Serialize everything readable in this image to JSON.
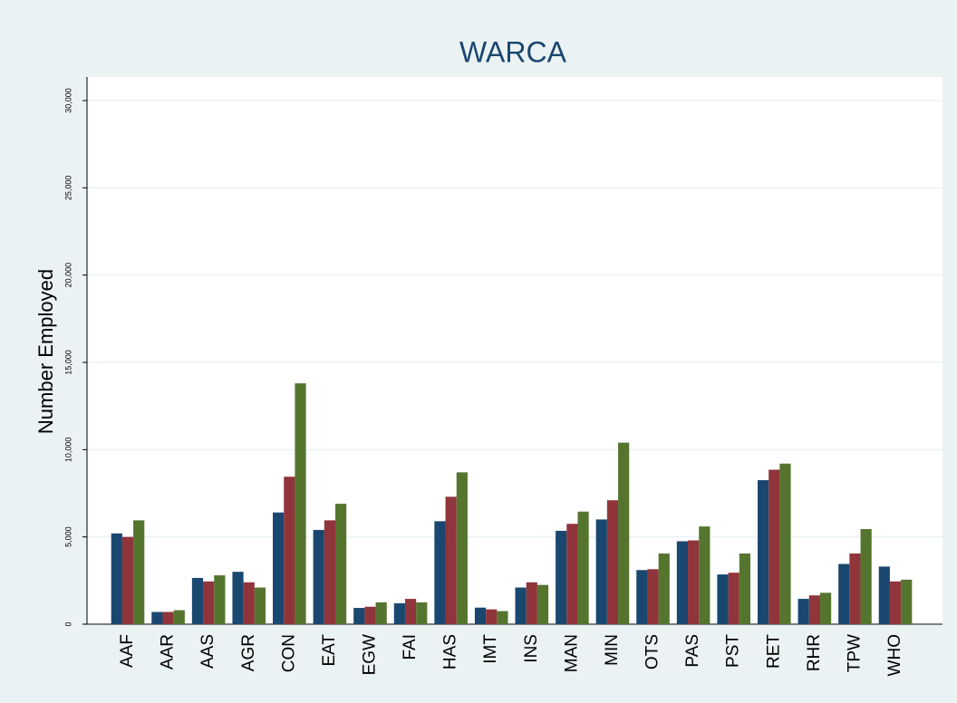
{
  "chart_data": {
    "type": "bar",
    "title": "WARCA",
    "y_label": "Number Employed",
    "categories": [
      "AAF",
      "AAR",
      "AAS",
      "AGR",
      "CON",
      "EAT",
      "EGW",
      "FAI",
      "HAS",
      "IMT",
      "INS",
      "MAN",
      "MIN",
      "OTS",
      "PAS",
      "PST",
      "RET",
      "RHR",
      "TPW",
      "WHO"
    ],
    "series": [
      {
        "color": "#1a476f",
        "values": [
          5200,
          700,
          2650,
          3000,
          6400,
          5400,
          930,
          1200,
          5900,
          950,
          2100,
          5350,
          6000,
          3100,
          4750,
          2850,
          8250,
          1450,
          3450,
          3300
        ]
      },
      {
        "color": "#90353b",
        "values": [
          5000,
          700,
          2450,
          2400,
          8450,
          5950,
          1000,
          1450,
          7300,
          850,
          2400,
          5750,
          7100,
          3150,
          4800,
          2950,
          8850,
          1650,
          4050,
          2450
        ]
      },
      {
        "color": "#55752f",
        "values": [
          5950,
          800,
          2800,
          2100,
          13800,
          6900,
          1250,
          1250,
          8700,
          750,
          2250,
          6450,
          10400,
          4050,
          5600,
          4050,
          9200,
          1800,
          5450,
          2550
        ]
      }
    ],
    "ylim": [
      0,
      30000
    ],
    "yticks": [
      0,
      {
        "value": 5000,
        "label": "5,000"
      },
      {
        "value": 10000,
        "label": "10,000"
      },
      {
        "value": 15000,
        "label": "15,000"
      },
      {
        "value": 20000,
        "label": "20,000"
      },
      {
        "value": 25000,
        "label": "25,000"
      },
      {
        "value": 30000,
        "label": "30,000"
      }
    ],
    "grid": true
  }
}
